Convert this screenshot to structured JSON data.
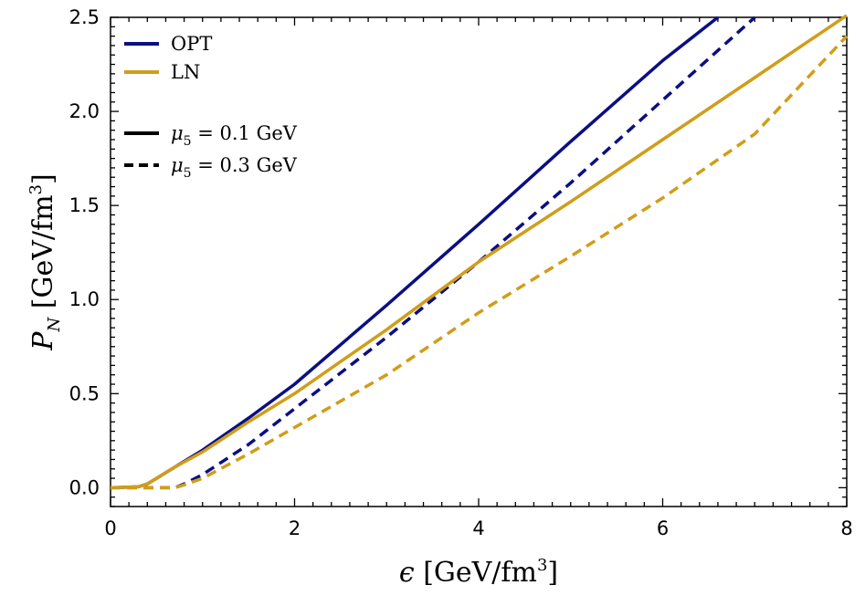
{
  "chart_data": {
    "type": "line",
    "title": "",
    "xlabel": {
      "symbol": "ϵ",
      "unit_open": " [GeV/fm",
      "sup": "3",
      "unit_close": "]"
    },
    "ylabel": {
      "symbol": "P",
      "sub": "N",
      "unit_open": " [GeV/fm",
      "sup": "3",
      "unit_close": "]"
    },
    "xlim": [
      0,
      8
    ],
    "ylim": [
      -0.1,
      2.5
    ],
    "x_ticks": [
      0,
      2,
      4,
      6,
      8
    ],
    "x_tick_labels": [
      "0",
      "2",
      "4",
      "6",
      "8"
    ],
    "y_ticks": [
      0.0,
      0.5,
      1.0,
      1.5,
      2.0,
      2.5
    ],
    "y_tick_labels": [
      "0.0",
      "0.5",
      "1.0",
      "1.5",
      "2.0",
      "2.5"
    ],
    "grid": false,
    "legend_position": "top-left",
    "colors": {
      "OPT": "#0b0f84",
      "LN": "#d19d19",
      "axis": "#000000"
    },
    "legend": {
      "models": [
        {
          "label": "OPT",
          "color": "#0b0f84"
        },
        {
          "label": "LN",
          "color": "#d19d19"
        }
      ],
      "styles": [
        {
          "mu": "μ",
          "sub": "5",
          "value": " = 0.1 GeV",
          "dash": "solid"
        },
        {
          "mu": "μ",
          "sub": "5",
          "value": " = 0.3 GeV",
          "dash": "dashed"
        }
      ]
    },
    "series": [
      {
        "name": "OPT μ5=0.1 GeV",
        "model": "OPT",
        "dash": "solid",
        "x": [
          0,
          0.3,
          0.4,
          0.5,
          0.7,
          1.0,
          1.5,
          2.0,
          3.0,
          4.0,
          5.0,
          6.0,
          6.6
        ],
        "y": [
          0,
          0.005,
          0.02,
          0.05,
          0.11,
          0.2,
          0.37,
          0.55,
          0.97,
          1.4,
          1.84,
          2.27,
          2.5
        ]
      },
      {
        "name": "OPT μ5=0.3 GeV",
        "model": "OPT",
        "dash": "dashed",
        "x": [
          0,
          0.7,
          0.8,
          1.0,
          1.5,
          2.0,
          3.0,
          4.0,
          5.0,
          6.0,
          7.0
        ],
        "y": [
          0,
          0,
          0.02,
          0.07,
          0.23,
          0.42,
          0.8,
          1.2,
          1.62,
          2.06,
          2.5
        ]
      },
      {
        "name": "LN μ5=0.1 GeV",
        "model": "LN",
        "dash": "solid",
        "x": [
          0,
          0.3,
          0.4,
          0.5,
          0.7,
          1.0,
          1.5,
          2.0,
          3.0,
          4.0,
          5.0,
          6.0,
          7.0,
          8.0
        ],
        "y": [
          0,
          0.005,
          0.02,
          0.05,
          0.11,
          0.19,
          0.35,
          0.5,
          0.84,
          1.2,
          1.52,
          1.85,
          2.18,
          2.51
        ]
      },
      {
        "name": "LN μ5=0.3 GeV",
        "model": "LN",
        "dash": "dashed",
        "x": [
          0,
          0.7,
          0.8,
          1.0,
          1.5,
          2.0,
          3.0,
          4.0,
          5.0,
          6.0,
          7.0,
          8.0
        ],
        "y": [
          0,
          0,
          0.015,
          0.05,
          0.18,
          0.32,
          0.6,
          0.93,
          1.23,
          1.54,
          1.88,
          2.4
        ]
      }
    ]
  }
}
